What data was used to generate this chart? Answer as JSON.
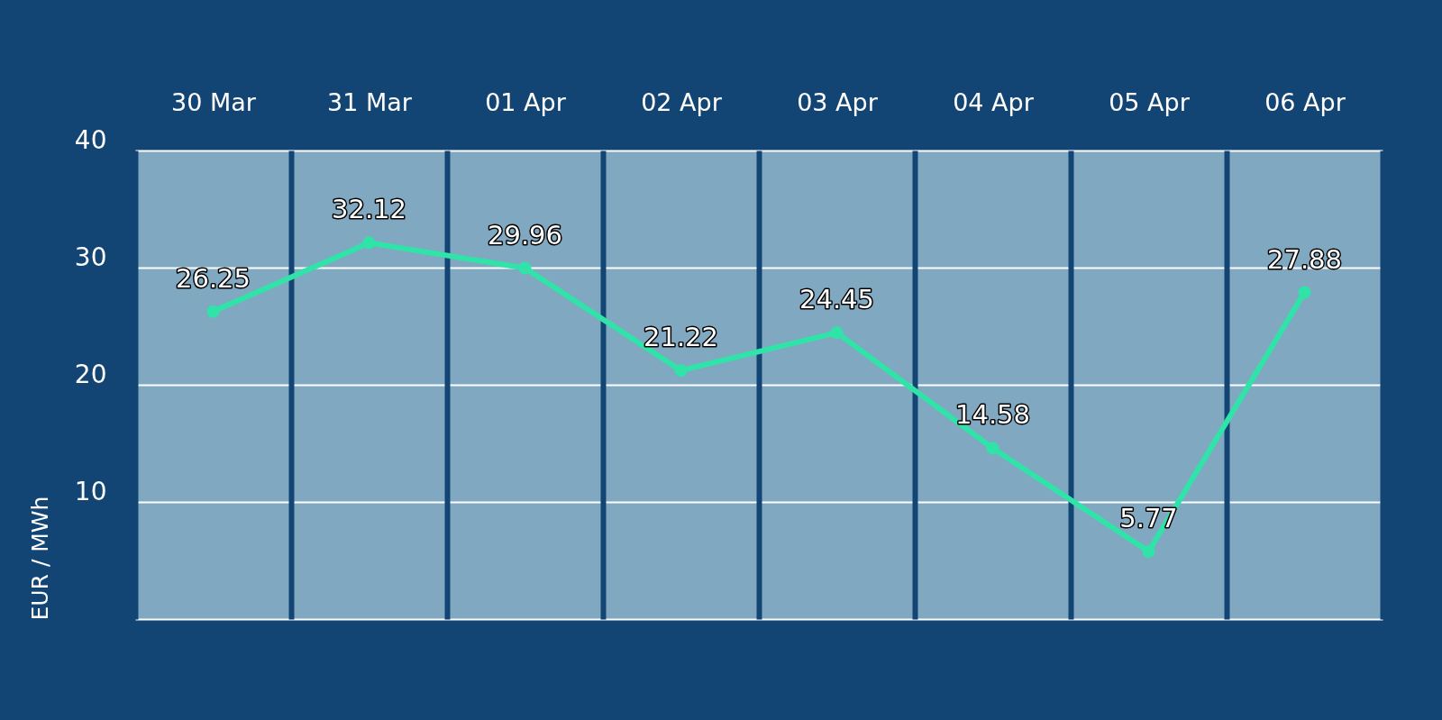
{
  "chart_data": {
    "type": "line",
    "ylabel": "EUR / MWh",
    "categories": [
      "30 Mar",
      "31 Mar",
      "01 Apr",
      "02 Apr",
      "03 Apr",
      "04 Apr",
      "05 Apr",
      "06 Apr"
    ],
    "values": [
      26.25,
      32.12,
      29.96,
      21.22,
      24.45,
      14.58,
      5.77,
      27.88
    ],
    "color": "#30e3a8",
    "ylim": [
      0,
      40
    ],
    "yticks": [
      {
        "value": 0,
        "label": null
      },
      10,
      20,
      30,
      40
    ],
    "grid": true,
    "data_labels": true,
    "marker": "circle",
    "line_style": "solid"
  }
}
